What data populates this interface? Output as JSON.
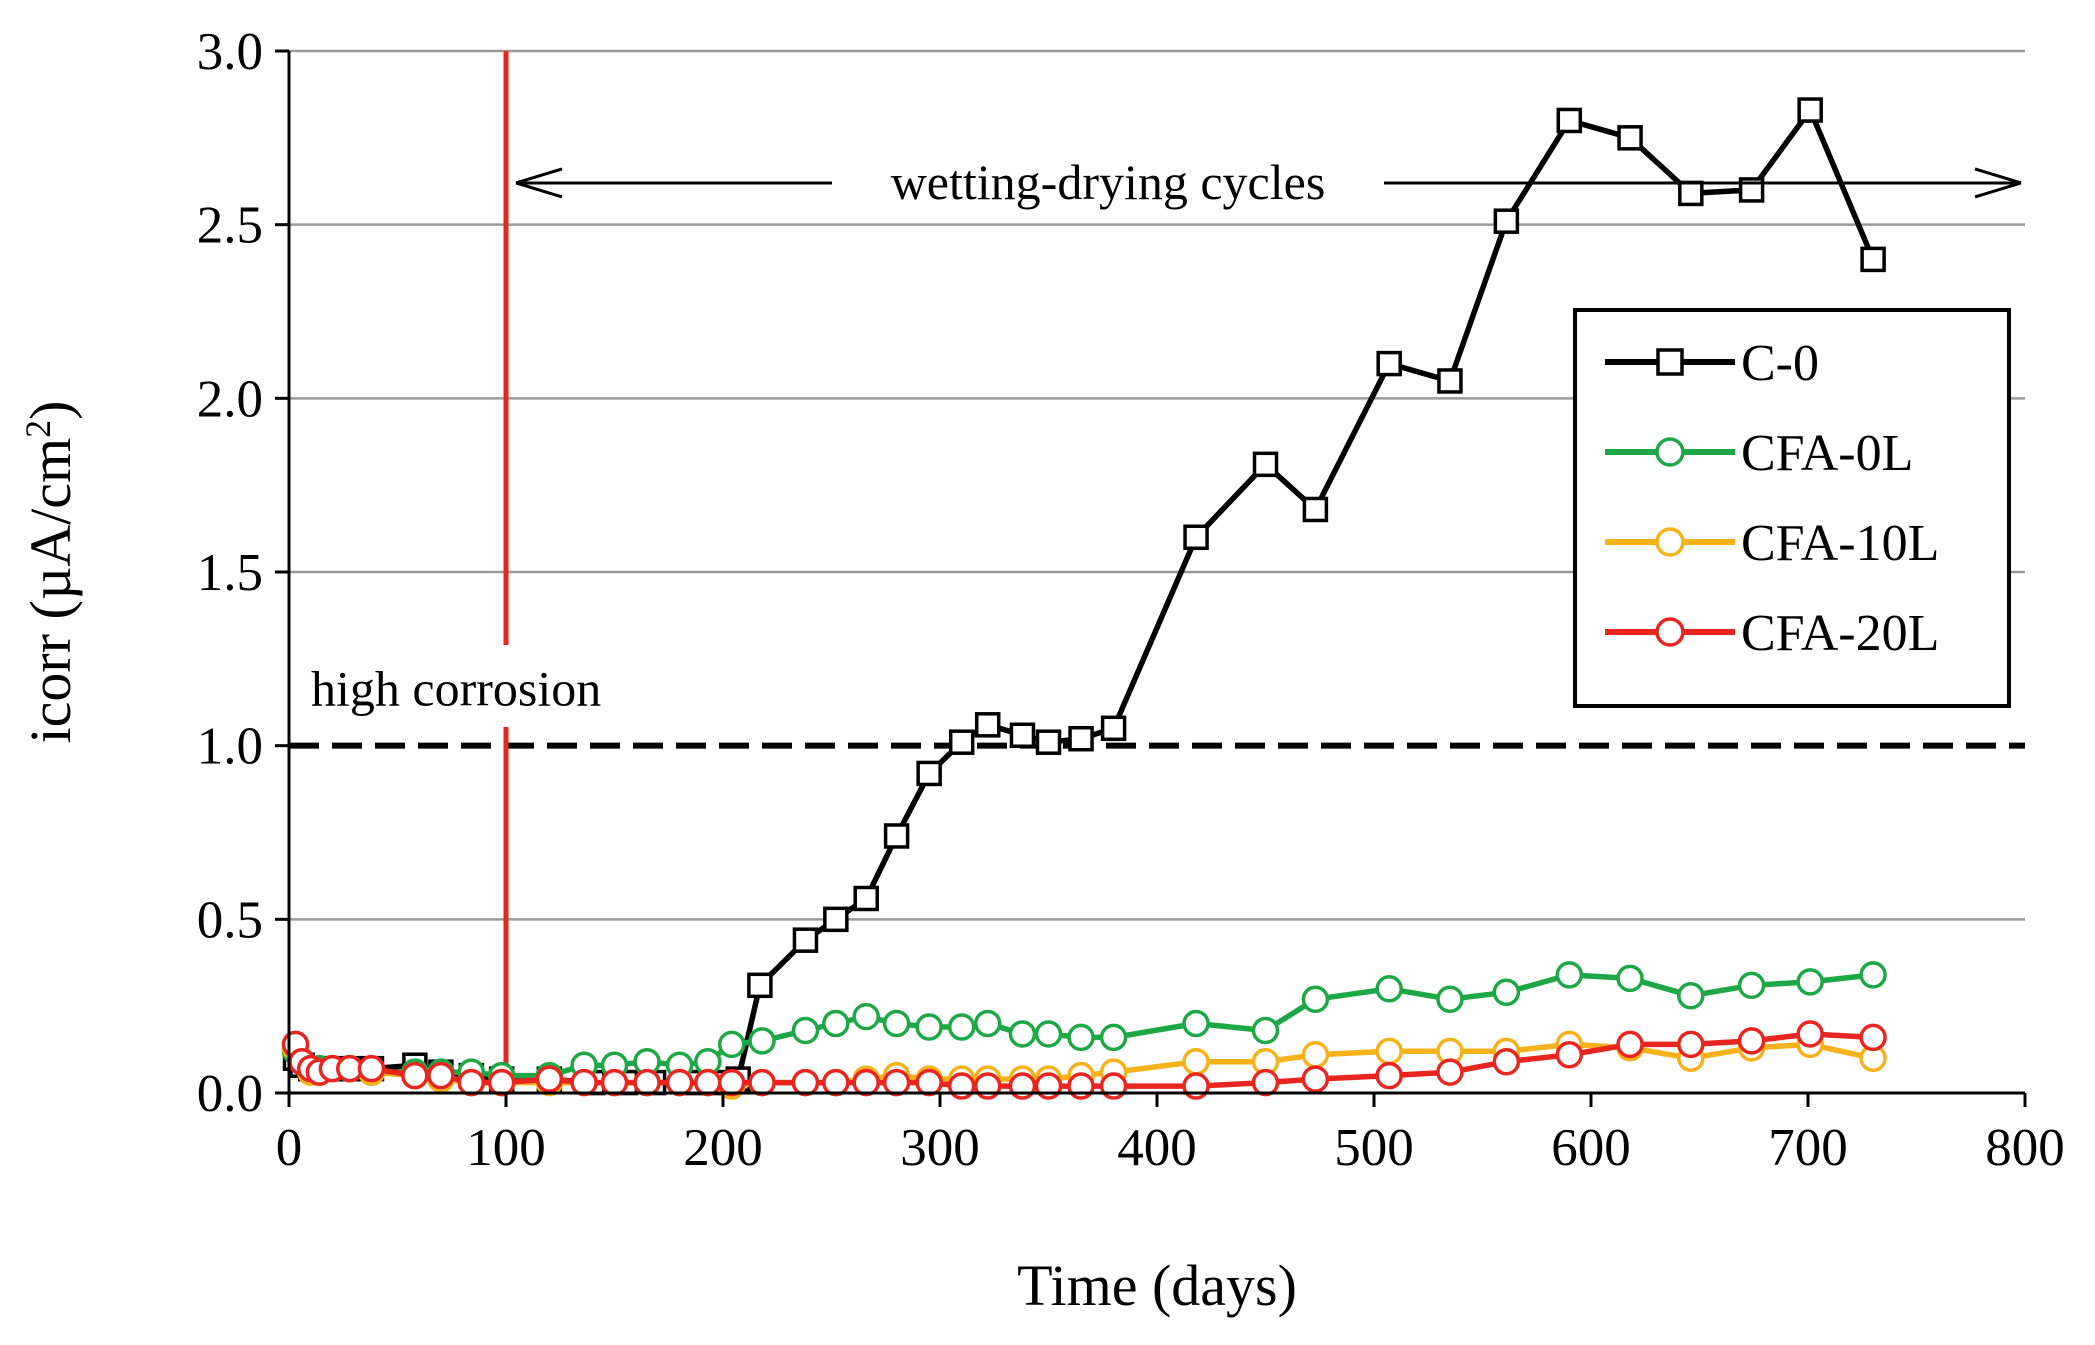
{
  "chart_data": {
    "type": "line",
    "title": "",
    "xlabel": "Time (days)",
    "ylabel": "icorr (µA/cm²)",
    "ylabel_main": "icorr (µA/cm",
    "ylabel_sup": "2",
    "ylabel_close": ")",
    "xlim": [
      0,
      800
    ],
    "ylim": [
      0,
      3.0
    ],
    "xticks": [
      0,
      100,
      200,
      300,
      400,
      500,
      600,
      700,
      800
    ],
    "yticks": [
      0,
      0.5,
      1.0,
      1.5,
      2.0,
      2.5,
      3.0
    ],
    "xtick_labels": [
      "0",
      "100",
      "200",
      "300",
      "400",
      "500",
      "600",
      "700",
      "800"
    ],
    "ytick_labels": [
      "0.0",
      "0.5",
      "1.0",
      "1.5",
      "2.0",
      "2.5",
      "3.0"
    ],
    "grid": "horizontal",
    "legend_position": "right",
    "threshold": {
      "y": 1.0,
      "label": "high corrosion",
      "color": "#000000"
    },
    "vertical_marker": {
      "x": 100,
      "color": "#e8261f"
    },
    "span": {
      "from": 100,
      "to": 800,
      "y": 2.62,
      "label": "wetting-drying cycles"
    },
    "series": [
      {
        "name": "C-0",
        "color": "#000000",
        "marker": "square",
        "points": [
          [
            3,
            0.1
          ],
          [
            6,
            0.08
          ],
          [
            10,
            0.07
          ],
          [
            14,
            0.07
          ],
          [
            20,
            0.07
          ],
          [
            28,
            0.07
          ],
          [
            38,
            0.07
          ],
          [
            58,
            0.08
          ],
          [
            70,
            0.06
          ],
          [
            84,
            0.05
          ],
          [
            98,
            0.04
          ],
          [
            120,
            0.04
          ],
          [
            140,
            0.03
          ],
          [
            155,
            0.03
          ],
          [
            168,
            0.03
          ],
          [
            186,
            0.03
          ],
          [
            196,
            0.03
          ],
          [
            207,
            0.04
          ],
          [
            217,
            0.31
          ],
          [
            238,
            0.44
          ],
          [
            252,
            0.5
          ],
          [
            266,
            0.56
          ],
          [
            280,
            0.74
          ],
          [
            295,
            0.92
          ],
          [
            310,
            1.01
          ],
          [
            322,
            1.06
          ],
          [
            338,
            1.03
          ],
          [
            350,
            1.01
          ],
          [
            365,
            1.02
          ],
          [
            380,
            1.05
          ],
          [
            418,
            1.6
          ],
          [
            450,
            1.81
          ],
          [
            473,
            1.68
          ],
          [
            507,
            2.1
          ],
          [
            535,
            2.05
          ],
          [
            561,
            2.51
          ],
          [
            590,
            2.8
          ],
          [
            618,
            2.75
          ],
          [
            646,
            2.59
          ],
          [
            674,
            2.6
          ],
          [
            701,
            2.83
          ],
          [
            730,
            2.4
          ]
        ]
      },
      {
        "name": "CFA-0L",
        "color": "#1ea845",
        "marker": "circle",
        "points": [
          [
            3,
            0.12
          ],
          [
            6,
            0.09
          ],
          [
            10,
            0.07
          ],
          [
            14,
            0.07
          ],
          [
            20,
            0.07
          ],
          [
            28,
            0.07
          ],
          [
            38,
            0.06
          ],
          [
            58,
            0.06
          ],
          [
            70,
            0.06
          ],
          [
            84,
            0.06
          ],
          [
            98,
            0.05
          ],
          [
            120,
            0.05
          ],
          [
            136,
            0.08
          ],
          [
            150,
            0.08
          ],
          [
            165,
            0.09
          ],
          [
            180,
            0.08
          ],
          [
            193,
            0.09
          ],
          [
            204,
            0.14
          ],
          [
            218,
            0.15
          ],
          [
            238,
            0.18
          ],
          [
            252,
            0.2
          ],
          [
            266,
            0.22
          ],
          [
            280,
            0.2
          ],
          [
            295,
            0.19
          ],
          [
            310,
            0.19
          ],
          [
            322,
            0.2
          ],
          [
            338,
            0.17
          ],
          [
            350,
            0.17
          ],
          [
            365,
            0.16
          ],
          [
            380,
            0.16
          ],
          [
            418,
            0.2
          ],
          [
            450,
            0.18
          ],
          [
            473,
            0.27
          ],
          [
            507,
            0.3
          ],
          [
            535,
            0.27
          ],
          [
            561,
            0.29
          ],
          [
            590,
            0.34
          ],
          [
            618,
            0.33
          ],
          [
            646,
            0.28
          ],
          [
            674,
            0.31
          ],
          [
            701,
            0.32
          ],
          [
            730,
            0.34
          ]
        ]
      },
      {
        "name": "CFA-10L",
        "color": "#f5b21a",
        "marker": "circle",
        "points": [
          [
            3,
            0.13
          ],
          [
            6,
            0.09
          ],
          [
            10,
            0.06
          ],
          [
            14,
            0.06
          ],
          [
            20,
            0.07
          ],
          [
            28,
            0.07
          ],
          [
            38,
            0.06
          ],
          [
            58,
            0.05
          ],
          [
            70,
            0.04
          ],
          [
            84,
            0.03
          ],
          [
            98,
            0.03
          ],
          [
            120,
            0.03
          ],
          [
            136,
            0.03
          ],
          [
            150,
            0.03
          ],
          [
            165,
            0.03
          ],
          [
            180,
            0.03
          ],
          [
            193,
            0.03
          ],
          [
            204,
            0.02
          ],
          [
            218,
            0.03
          ],
          [
            238,
            0.03
          ],
          [
            252,
            0.03
          ],
          [
            266,
            0.04
          ],
          [
            280,
            0.05
          ],
          [
            295,
            0.04
          ],
          [
            310,
            0.04
          ],
          [
            322,
            0.04
          ],
          [
            338,
            0.04
          ],
          [
            350,
            0.04
          ],
          [
            365,
            0.05
          ],
          [
            380,
            0.06
          ],
          [
            418,
            0.09
          ],
          [
            450,
            0.09
          ],
          [
            473,
            0.11
          ],
          [
            507,
            0.12
          ],
          [
            535,
            0.12
          ],
          [
            561,
            0.12
          ],
          [
            590,
            0.14
          ],
          [
            618,
            0.13
          ],
          [
            646,
            0.1
          ],
          [
            674,
            0.13
          ],
          [
            701,
            0.14
          ],
          [
            730,
            0.1
          ]
        ]
      },
      {
        "name": "CFA-20L",
        "color": "#e8261f",
        "marker": "circle",
        "points": [
          [
            3,
            0.14
          ],
          [
            6,
            0.09
          ],
          [
            10,
            0.07
          ],
          [
            14,
            0.06
          ],
          [
            20,
            0.07
          ],
          [
            28,
            0.07
          ],
          [
            38,
            0.07
          ],
          [
            58,
            0.05
          ],
          [
            70,
            0.05
          ],
          [
            84,
            0.03
          ],
          [
            98,
            0.03
          ],
          [
            120,
            0.04
          ],
          [
            136,
            0.03
          ],
          [
            150,
            0.03
          ],
          [
            165,
            0.03
          ],
          [
            180,
            0.03
          ],
          [
            193,
            0.03
          ],
          [
            204,
            0.03
          ],
          [
            218,
            0.03
          ],
          [
            238,
            0.03
          ],
          [
            252,
            0.03
          ],
          [
            266,
            0.03
          ],
          [
            280,
            0.03
          ],
          [
            295,
            0.03
          ],
          [
            310,
            0.02
          ],
          [
            322,
            0.02
          ],
          [
            338,
            0.02
          ],
          [
            350,
            0.02
          ],
          [
            365,
            0.02
          ],
          [
            380,
            0.02
          ],
          [
            418,
            0.02
          ],
          [
            450,
            0.03
          ],
          [
            473,
            0.04
          ],
          [
            507,
            0.05
          ],
          [
            535,
            0.06
          ],
          [
            561,
            0.09
          ],
          [
            590,
            0.11
          ],
          [
            618,
            0.14
          ],
          [
            646,
            0.14
          ],
          [
            674,
            0.15
          ],
          [
            701,
            0.17
          ],
          [
            730,
            0.16
          ]
        ]
      }
    ]
  }
}
